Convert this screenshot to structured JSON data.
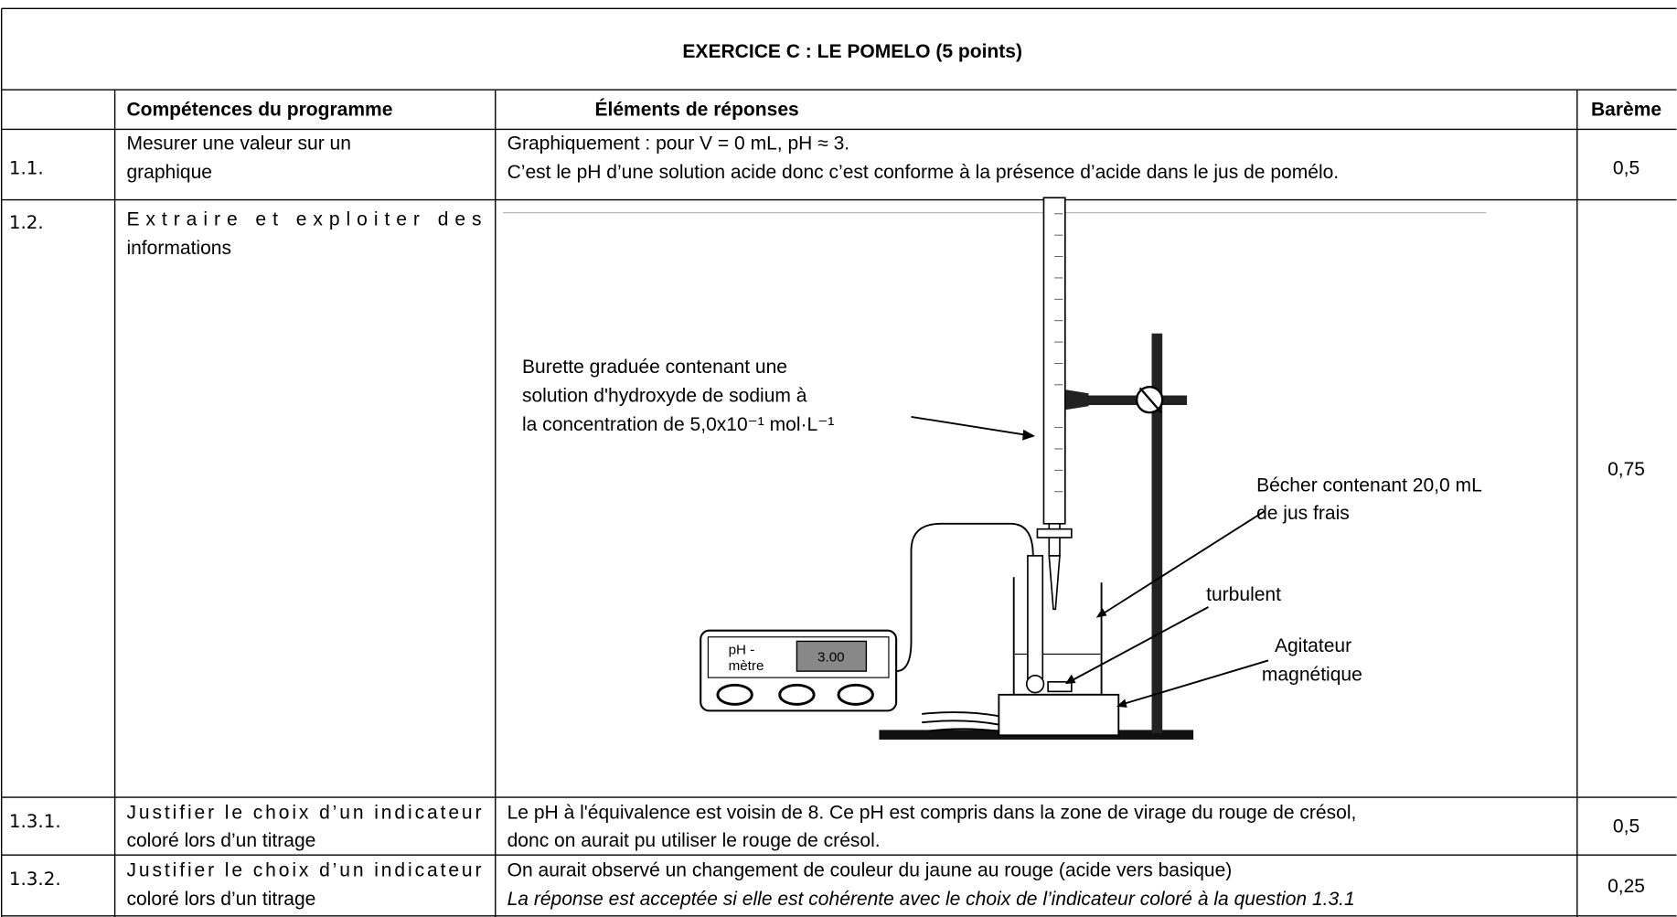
{
  "title": "EXERCICE C : LE POMELO (5 points)",
  "headers": {
    "competences": "Compétences du programme",
    "elements": "Éléments de réponses",
    "bareme": "Barème"
  },
  "rows": [
    {
      "id": "1.1.",
      "competence": [
        "Mesurer une valeur sur un",
        "graphique"
      ],
      "elements": [
        "Graphiquement : pour V = 0 mL, pH ≈ 3.",
        "C’est le pH d’une solution acide donc c’est conforme à la présence d’acide dans le jus de pomélo."
      ],
      "bareme": "0,5"
    },
    {
      "id": "1.2.",
      "competence": [
        "Extraire et exploiter des",
        "informations"
      ],
      "diagram": {
        "burette_label": [
          "Burette graduée contenant une",
          "solution d'hydroxyde de sodium à",
          "la concentration de 5,0x10⁻¹ mol·L⁻¹"
        ],
        "becher_label": [
          "Bécher contenant 20,0 mL",
          "de jus frais"
        ],
        "turbulent_label": "turbulent",
        "agitateur_label": [
          "Agitateur",
          "magnétique"
        ],
        "phmetre_label": [
          "pH -",
          "mètre"
        ],
        "phmetre_display": "3.00"
      },
      "bareme": "0,75"
    },
    {
      "id": "1.3.1.",
      "competence": [
        "Justifier le choix d’un indicateur",
        "coloré lors d’un titrage"
      ],
      "elements": [
        "Le pH à l'équivalence est voisin de 8. Ce pH est compris dans la zone de virage du rouge de crésol,",
        "donc on aurait pu utiliser le rouge de crésol."
      ],
      "bareme": "0,5"
    },
    {
      "id": "1.3.2.",
      "competence": [
        "Justifier le choix d’un indicateur",
        "coloré lors d’un titrage"
      ],
      "elements": [
        "On aurait observé un changement de couleur du jaune au rouge (acide vers basique)",
        "La réponse est acceptée si elle est cohérente avec le choix de l’indicateur coloré à la question 1.3.1"
      ],
      "bareme": "0,25"
    }
  ]
}
